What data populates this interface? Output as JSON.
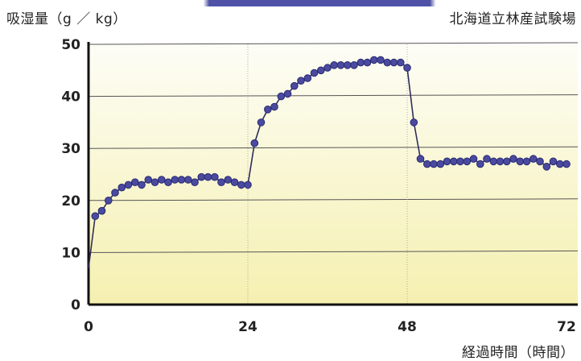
{
  "chart_data": {
    "type": "line",
    "ylabel": "吸湿量（g ／ kg）",
    "source": "北海道立林産試験場",
    "xlabel": "経過時間（時間）",
    "xlim": [
      0,
      72
    ],
    "ylim": [
      0,
      50
    ],
    "xticks": [
      "0",
      "24",
      "48",
      "72"
    ],
    "yticks": [
      "0",
      "10",
      "20",
      "30",
      "40",
      "50"
    ],
    "grid": true,
    "series": [
      {
        "x": [
          0,
          1,
          2,
          3,
          4,
          5,
          6,
          7,
          8,
          9,
          10,
          11,
          12,
          13,
          14,
          15,
          16,
          17,
          18,
          19,
          20,
          21,
          22,
          23,
          24,
          25,
          26,
          27,
          28,
          29,
          30,
          31,
          32,
          33,
          34,
          35,
          36,
          37,
          38,
          39,
          40,
          41,
          42,
          43,
          44,
          45,
          46,
          47,
          48,
          49,
          50,
          51,
          52,
          53,
          54,
          55,
          56,
          57,
          58,
          59,
          60,
          61,
          62,
          63,
          64,
          65,
          66,
          67,
          68,
          69,
          70,
          71,
          72
        ],
        "values": [
          7,
          17,
          18,
          20,
          21.5,
          22.5,
          23,
          23.5,
          23,
          24,
          23.5,
          24,
          23.5,
          24,
          24,
          24,
          23.5,
          24.5,
          24.5,
          24.5,
          23.5,
          24,
          23.5,
          23,
          23,
          31,
          35,
          37.5,
          38,
          40,
          40.5,
          42,
          43,
          43.5,
          44.5,
          45,
          45.5,
          46,
          46,
          46,
          46,
          46.5,
          46.5,
          47,
          47,
          46.5,
          46.5,
          46.5,
          45.5,
          35,
          28,
          27,
          27,
          27,
          27.5,
          27.5,
          27.5,
          27.5,
          28,
          27,
          28,
          27.5,
          27.5,
          27.5,
          28,
          27.5,
          27.5,
          28,
          27.5,
          26.5,
          27.5,
          27,
          27
        ]
      }
    ],
    "colors": {
      "line": "#2e2e5a",
      "marker": "#4a4aa0",
      "marker_edge": "#2a2a70",
      "fill_top": "#fdfdf6",
      "fill_bottom": "#f5f0b0"
    }
  }
}
